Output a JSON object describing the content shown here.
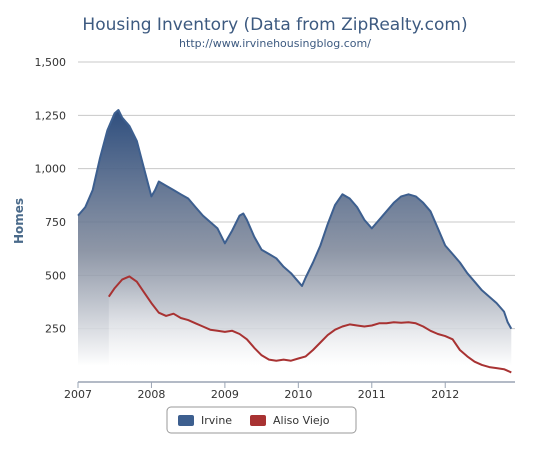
{
  "chart_data": {
    "type": "area",
    "title": "Housing Inventory (Data from ZipRealty.com)",
    "subtitle": "http://www.irvinehousingblog.com/",
    "ylabel": "Homes",
    "xlabel": "",
    "ylim": [
      0,
      1500
    ],
    "xlim": [
      2007.0,
      2012.95
    ],
    "y_ticks": [
      {
        "value": 250,
        "label": "250"
      },
      {
        "value": 500,
        "label": "500"
      },
      {
        "value": 750,
        "label": "750"
      },
      {
        "value": 1000,
        "label": "1,000"
      },
      {
        "value": 1250,
        "label": "1,250"
      },
      {
        "value": 1500,
        "label": "1,500"
      }
    ],
    "x_ticks": [
      {
        "value": 2007,
        "label": "2007"
      },
      {
        "value": 2008,
        "label": "2008"
      },
      {
        "value": 2009,
        "label": "2009"
      },
      {
        "value": 2010,
        "label": "2010"
      },
      {
        "value": 2011,
        "label": "2011"
      },
      {
        "value": 2012,
        "label": "2012"
      }
    ],
    "grid": "horizontal",
    "legend_position": "bottom-center",
    "series": [
      {
        "name": "Irvine",
        "color": "#3d5f8f",
        "x": [
          2007.0,
          2007.1,
          2007.2,
          2007.3,
          2007.4,
          2007.5,
          2007.55,
          2007.6,
          2007.7,
          2007.8,
          2007.9,
          2008.0,
          2008.05,
          2008.1,
          2008.2,
          2008.3,
          2008.4,
          2008.5,
          2008.6,
          2008.7,
          2008.8,
          2008.9,
          2009.0,
          2009.1,
          2009.2,
          2009.25,
          2009.3,
          2009.4,
          2009.5,
          2009.6,
          2009.7,
          2009.8,
          2009.9,
          2010.0,
          2010.05,
          2010.1,
          2010.2,
          2010.3,
          2010.4,
          2010.5,
          2010.6,
          2010.7,
          2010.8,
          2010.9,
          2011.0,
          2011.1,
          2011.2,
          2011.3,
          2011.4,
          2011.5,
          2011.6,
          2011.7,
          2011.8,
          2011.9,
          2012.0,
          2012.1,
          2012.2,
          2012.3,
          2012.4,
          2012.5,
          2012.6,
          2012.7,
          2012.8,
          2012.85,
          2012.9
        ],
        "values": [
          780,
          820,
          900,
          1050,
          1180,
          1260,
          1275,
          1240,
          1200,
          1130,
          1000,
          870,
          900,
          940,
          920,
          900,
          880,
          860,
          820,
          780,
          750,
          720,
          650,
          710,
          780,
          790,
          760,
          680,
          620,
          600,
          580,
          540,
          510,
          470,
          450,
          490,
          560,
          640,
          740,
          830,
          880,
          860,
          820,
          760,
          720,
          760,
          800,
          840,
          870,
          880,
          870,
          840,
          800,
          720,
          640,
          600,
          560,
          510,
          470,
          430,
          400,
          370,
          330,
          280,
          250
        ]
      },
      {
        "name": "Aliso Viejo",
        "color": "#a83232",
        "x": [
          2007.42,
          2007.5,
          2007.6,
          2007.7,
          2007.8,
          2007.9,
          2008.0,
          2008.1,
          2008.2,
          2008.3,
          2008.4,
          2008.5,
          2008.6,
          2008.7,
          2008.8,
          2008.9,
          2009.0,
          2009.1,
          2009.2,
          2009.3,
          2009.4,
          2009.5,
          2009.6,
          2009.7,
          2009.8,
          2009.9,
          2010.0,
          2010.1,
          2010.2,
          2010.3,
          2010.4,
          2010.5,
          2010.6,
          2010.7,
          2010.8,
          2010.9,
          2011.0,
          2011.1,
          2011.2,
          2011.3,
          2011.4,
          2011.5,
          2011.6,
          2011.7,
          2011.8,
          2011.9,
          2012.0,
          2012.1,
          2012.2,
          2012.3,
          2012.4,
          2012.5,
          2012.6,
          2012.7,
          2012.8,
          2012.9
        ],
        "values": [
          400,
          440,
          480,
          495,
          470,
          420,
          370,
          325,
          310,
          320,
          300,
          290,
          275,
          260,
          245,
          240,
          235,
          240,
          225,
          200,
          160,
          125,
          105,
          100,
          105,
          100,
          110,
          120,
          150,
          185,
          220,
          245,
          260,
          270,
          265,
          260,
          265,
          275,
          275,
          280,
          278,
          280,
          275,
          260,
          240,
          225,
          215,
          200,
          150,
          120,
          95,
          80,
          70,
          65,
          60,
          45
        ]
      }
    ]
  }
}
